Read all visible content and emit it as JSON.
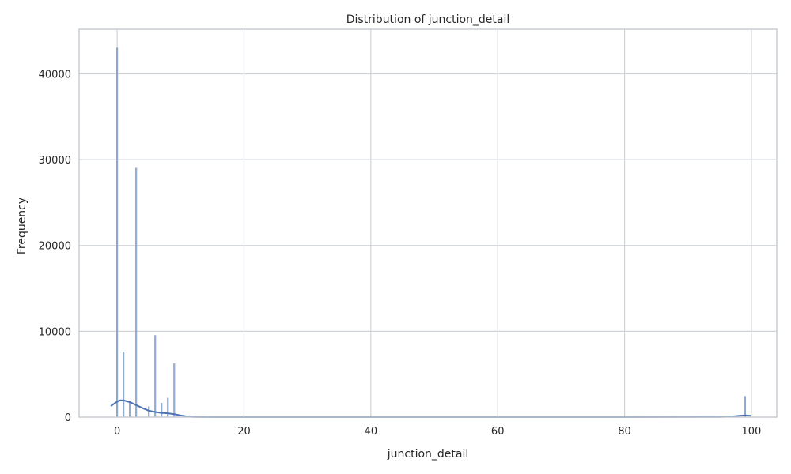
{
  "chart_data": {
    "type": "bar",
    "title": "Distribution of junction_detail",
    "xlabel": "junction_detail",
    "ylabel": "Frequency",
    "xlim": [
      -6,
      104
    ],
    "ylim": [
      0,
      45200
    ],
    "xticks": [
      0,
      20,
      40,
      60,
      80,
      100
    ],
    "yticks": [
      0,
      10000,
      20000,
      30000,
      40000
    ],
    "grid": true,
    "bars": [
      {
        "x": 0,
        "value": 43000
      },
      {
        "x": 1,
        "value": 7600
      },
      {
        "x": 2,
        "value": 1800
      },
      {
        "x": 3,
        "value": 29000
      },
      {
        "x": 5,
        "value": 1200
      },
      {
        "x": 6,
        "value": 9500
      },
      {
        "x": 7,
        "value": 1600
      },
      {
        "x": 8,
        "value": 2200
      },
      {
        "x": 9,
        "value": 6200
      },
      {
        "x": 99,
        "value": 2400
      }
    ],
    "kde": {
      "x": [
        -1,
        0,
        0.5,
        1,
        2,
        3,
        4,
        5,
        6,
        7,
        8,
        9,
        10,
        11,
        12,
        15,
        20,
        40,
        60,
        80,
        95,
        97,
        98,
        99,
        100
      ],
      "y": [
        1300,
        1800,
        1950,
        1950,
        1750,
        1400,
        1050,
        750,
        600,
        500,
        450,
        350,
        200,
        80,
        20,
        0,
        0,
        0,
        0,
        0,
        30,
        80,
        150,
        200,
        150
      ]
    },
    "colors": {
      "bar": "#5b7fbd",
      "kde": "#4c72b0",
      "grid": "#cfd3d8"
    }
  }
}
